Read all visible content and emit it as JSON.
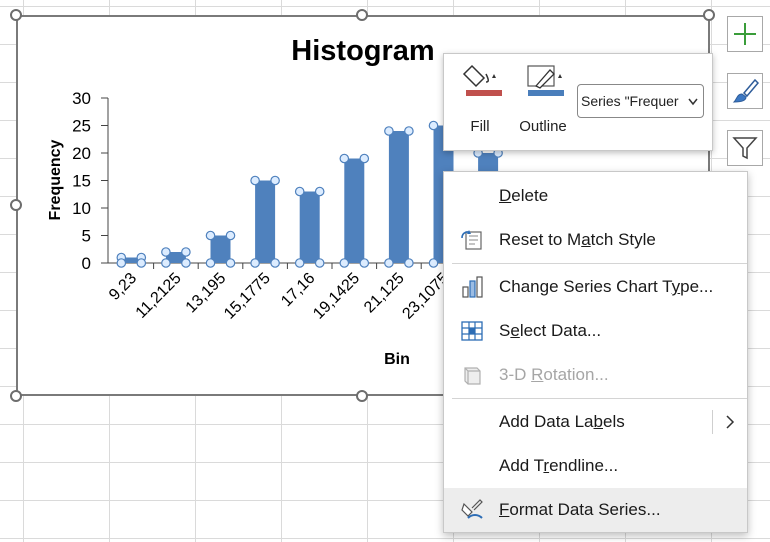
{
  "chart": {
    "title": "Histogram",
    "ylabel": "Frequency",
    "xlabel": "Bin"
  },
  "chart_data": {
    "type": "bar",
    "title": "Histogram",
    "xlabel": "Bin",
    "ylabel": "Frequency",
    "categories": [
      "9,23",
      "11,2125",
      "13,195",
      "15,1775",
      "17,16",
      "19,1425",
      "21,125",
      "23,1075",
      "",
      ""
    ],
    "values": [
      1,
      2,
      5,
      15,
      13,
      19,
      24,
      25,
      20,
      0
    ],
    "ylim": [
      0,
      30
    ],
    "yticks": [
      0,
      5,
      10,
      15,
      20,
      25,
      30
    ],
    "series": [
      {
        "name": "Frequency",
        "color": "#4f81bd"
      }
    ],
    "grid": false,
    "selected_series": true
  },
  "side_buttons": {
    "add_icon": "plus-icon",
    "style_icon": "paintbrush-icon",
    "filter_icon": "funnel-icon"
  },
  "minibar": {
    "fill_label": "Fill",
    "outline_label": "Outline",
    "series_select_value": "Series \"Frequer",
    "fill_color": "#c0504d",
    "outline_color": "#4a7ebb"
  },
  "context_menu": {
    "delete": {
      "pre": "",
      "u": "D",
      "post": "elete"
    },
    "reset": {
      "pre": "Reset to M",
      "u": "a",
      "post": "tch Style"
    },
    "change_type": {
      "pre": "Change Series Chart T",
      "u": "y",
      "post": "pe..."
    },
    "select_data": {
      "pre": "S",
      "u": "e",
      "post": "lect Data..."
    },
    "rotation": {
      "pre": "3-D ",
      "u": "R",
      "post": "otation..."
    },
    "add_labels": {
      "pre": "Add Data La",
      "u": "b",
      "post": "els"
    },
    "add_trendline": {
      "pre": "Add T",
      "u": "r",
      "post": "endline..."
    },
    "format_series": {
      "pre": "",
      "u": "F",
      "post": "ormat Data Series..."
    }
  }
}
